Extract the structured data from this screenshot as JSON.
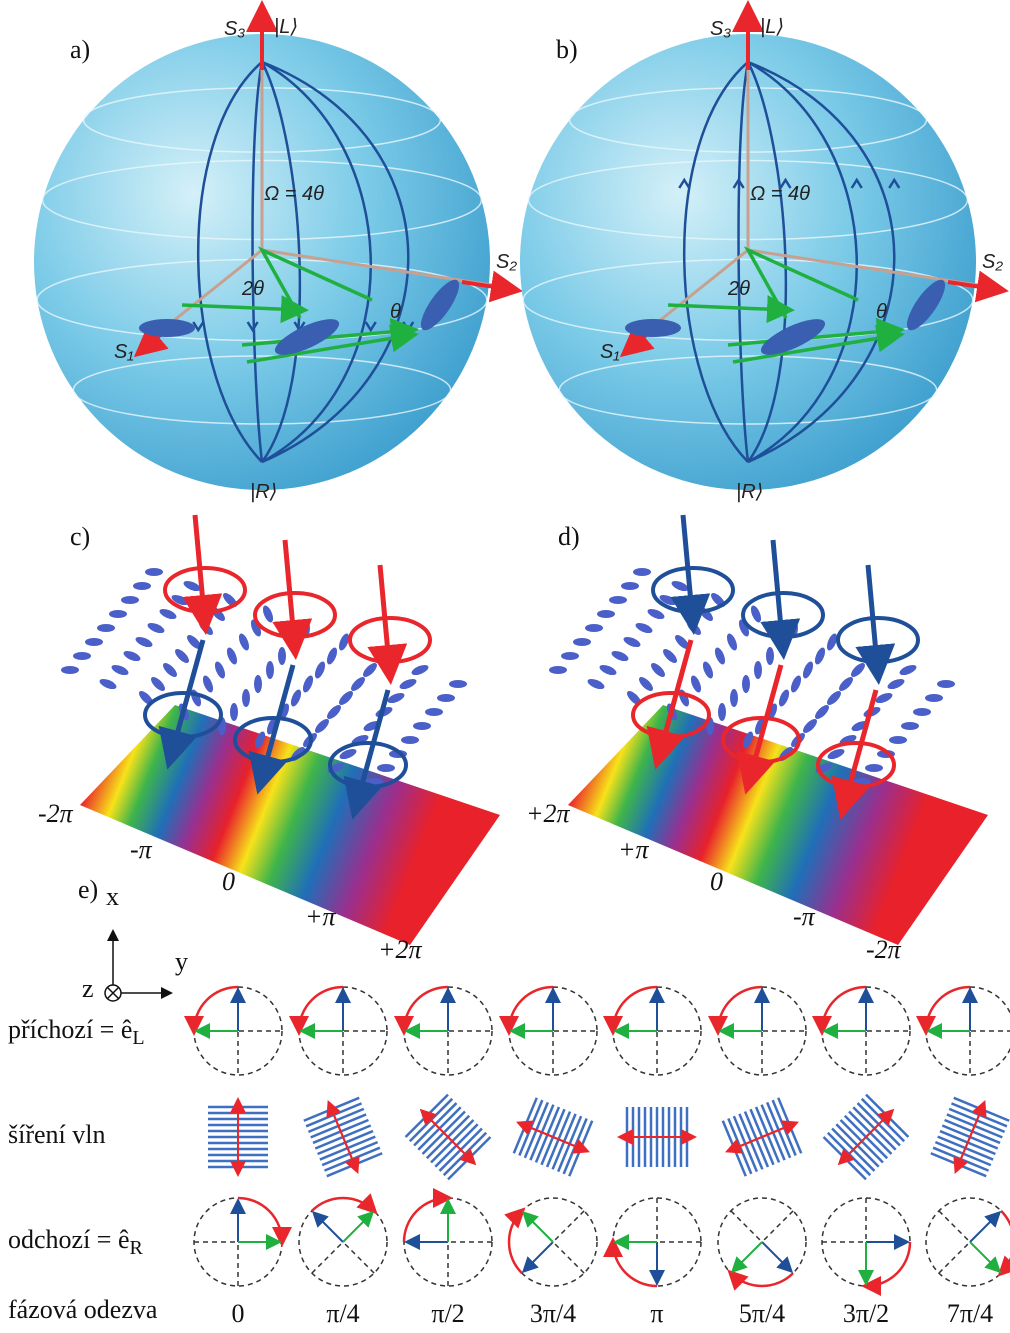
{
  "panel_a": {
    "label": "a)",
    "s3": "S₃",
    "ket_top": "|L⟩",
    "s2": "S₂",
    "s1": "S₁",
    "ket_bottom": "|R⟩",
    "solid_angle": "Ω = 4θ",
    "double_angle": "2θ",
    "angle": "θ"
  },
  "panel_b": {
    "label": "b)",
    "s3": "S₃",
    "ket_top": "|L⟩",
    "s2": "S₂",
    "s1": "S₁",
    "ket_bottom": "|R⟩",
    "solid_angle": "Ω = 4θ",
    "double_angle": "2θ",
    "angle": "θ"
  },
  "panel_c": {
    "label": "c)",
    "phase_ticks": [
      "-2π",
      "-π",
      "0",
      "+π",
      "+2π"
    ]
  },
  "panel_d": {
    "label": "d)",
    "phase_ticks": [
      "+2π",
      "+π",
      "0",
      "-π",
      "-2π"
    ]
  },
  "panel_e": {
    "label": "e)",
    "axes": {
      "x": "x",
      "y": "y",
      "z": "z"
    },
    "rows": {
      "incoming": {
        "text": "příchozí = ê",
        "subscript": "L"
      },
      "propagation": "šíření vln",
      "outgoing": {
        "text": "odchozí = ê",
        "subscript": "R"
      },
      "phase_response": "fázová odezva"
    },
    "phases": [
      "0",
      "π/4",
      "π/2",
      "3π/4",
      "π",
      "5π/4",
      "3π/2",
      "7π/4"
    ]
  }
}
